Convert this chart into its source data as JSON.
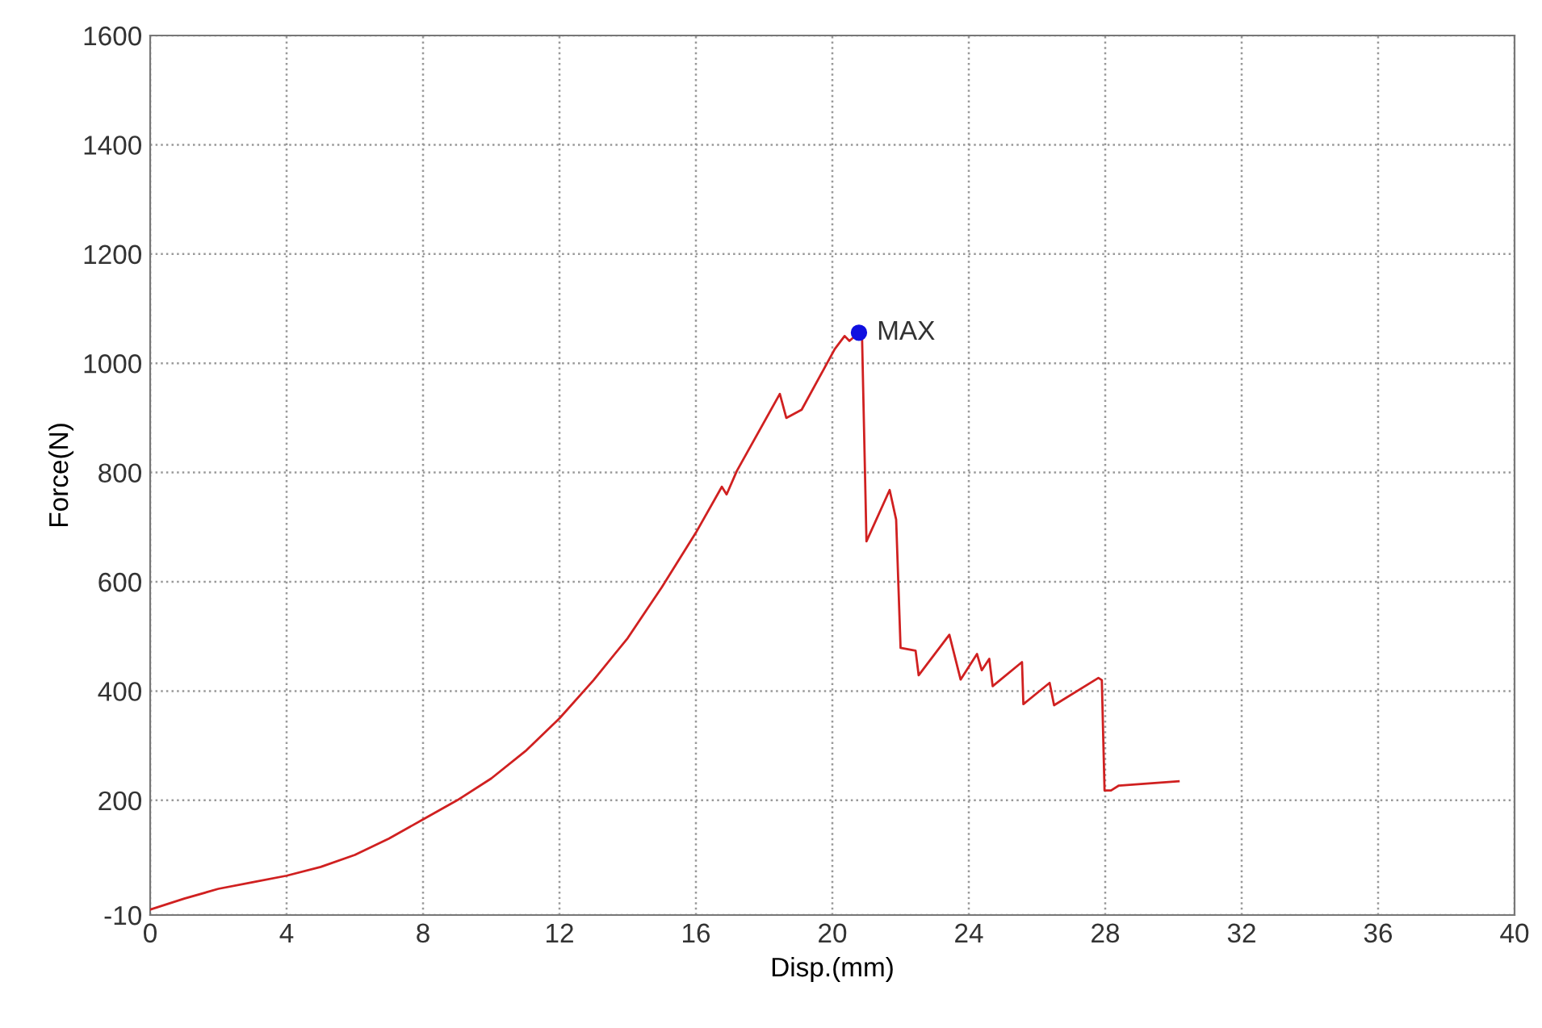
{
  "chart_data": {
    "type": "line",
    "xlabel": "Disp.(mm)",
    "ylabel": "Force(N)",
    "xlim": [
      0,
      40
    ],
    "ylim": [
      -10,
      1600
    ],
    "xticks": [
      0,
      4,
      8,
      12,
      16,
      20,
      24,
      28,
      32,
      36,
      40
    ],
    "yticks": [
      -10,
      200,
      400,
      600,
      800,
      1000,
      1200,
      1400,
      1600
    ],
    "grid": true,
    "series": [
      {
        "color": "#d02020",
        "line_style": "solid",
        "marker": "none",
        "x": [
          0,
          1,
          2,
          3,
          4,
          5,
          6,
          7,
          8,
          9,
          10,
          11,
          12,
          13,
          14,
          15,
          16,
          16.76,
          16.9,
          17.2,
          18.46,
          18.65,
          19.1,
          20.07,
          20.36,
          20.5,
          20.78,
          20.87,
          21.0,
          21.68,
          21.87,
          22.0,
          22.44,
          22.53,
          23.43,
          23.76,
          24.24,
          24.38,
          24.6,
          24.7,
          25.56,
          25.6,
          26.37,
          26.5,
          27.8,
          27.9,
          27.98,
          28.17,
          28.4,
          30.15
        ],
        "values": [
          0,
          20,
          38,
          50,
          62,
          78,
          100,
          130,
          165,
          200,
          240,
          290,
          350,
          420,
          497,
          590,
          690,
          774,
          760,
          803,
          944,
          900,
          915,
          1026,
          1050,
          1041,
          1056,
          1050,
          674,
          768,
          714,
          479,
          474,
          429,
          503,
          421,
          468,
          438,
          459,
          409,
          453,
          376,
          415,
          374,
          424,
          420,
          218,
          218,
          227,
          235
        ]
      },
      {
        "type": "scatter",
        "color": "#1010e0",
        "marker": "circle",
        "x": [
          20.78
        ],
        "values": [
          1056
        ]
      }
    ],
    "annotations": [
      {
        "text": "MAX",
        "x": 20.78,
        "y": 1056
      }
    ]
  }
}
